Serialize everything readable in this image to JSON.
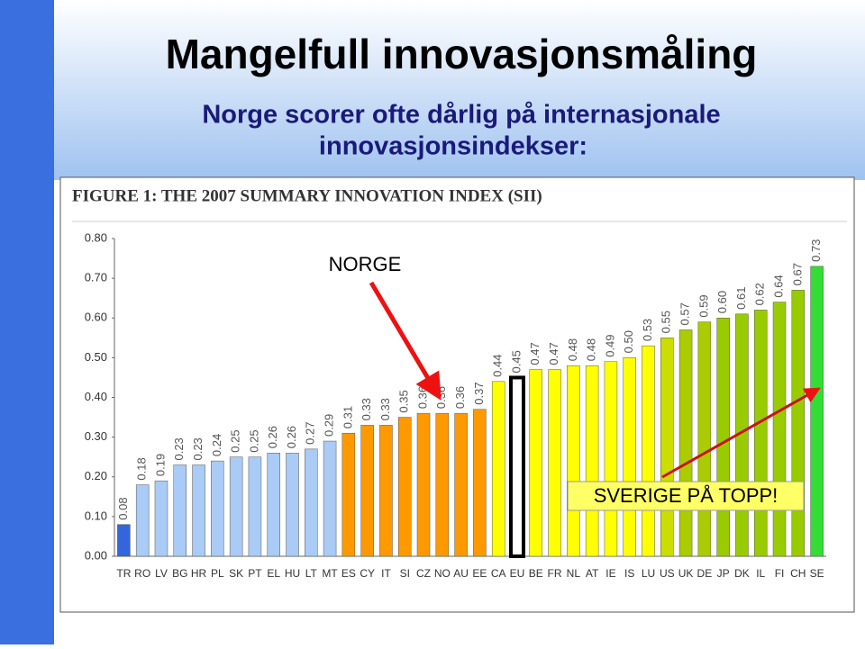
{
  "header": {
    "title": "Mangelfull innovasjonsmåling",
    "subtitle": [
      "Norge scorer ofte dårlig på internasjonale",
      "innovasjonsindekser:"
    ]
  },
  "chart_data": {
    "type": "bar",
    "title": "FIGURE 1: THE 2007 SUMMARY INNOVATION INDEX (SII)",
    "categories": [
      "TR",
      "RO",
      "LV",
      "BG",
      "HR",
      "PL",
      "SK",
      "PT",
      "EL",
      "HU",
      "LT",
      "MT",
      "ES",
      "CY",
      "IT",
      "SI",
      "CZ",
      "NO",
      "AU",
      "EE",
      "CA",
      "EU",
      "BE",
      "FR",
      "NL",
      "AT",
      "IE",
      "IS",
      "LU",
      "US",
      "UK",
      "DE",
      "JP",
      "DK",
      "IL",
      "FI",
      "CH",
      "SE"
    ],
    "values": [
      0.08,
      0.18,
      0.19,
      0.23,
      0.23,
      0.24,
      0.25,
      0.25,
      0.26,
      0.26,
      0.27,
      0.29,
      0.31,
      0.33,
      0.33,
      0.35,
      0.36,
      0.36,
      0.36,
      0.37,
      0.44,
      0.45,
      0.47,
      0.47,
      0.48,
      0.48,
      0.49,
      0.5,
      0.53,
      0.55,
      0.57,
      0.59,
      0.6,
      0.61,
      0.62,
      0.64,
      0.67,
      0.73
    ],
    "value_labels": [
      "0.08",
      "0.18",
      "0.19",
      "0.23",
      "0.23",
      "0.24",
      "0.25",
      "0.25",
      "0.26",
      "0.26",
      "0.27",
      "0.29",
      "0.31",
      "0.33",
      "0.33",
      "0.35",
      "0.36",
      "0.36",
      "0.36",
      "0.37",
      "0.44",
      "0.45",
      "0.47",
      "0.47",
      "0.48",
      "0.48",
      "0.49",
      "0.50",
      "0.53",
      "0.55",
      "0.57",
      "0.59",
      "0.60",
      "0.61",
      "0.62",
      "0.64",
      "0.67",
      "0.73"
    ],
    "colors": [
      "#3366dd",
      "#a9cbf5",
      "#a9cbf5",
      "#a9cbf5",
      "#a9cbf5",
      "#a9cbf5",
      "#a9cbf5",
      "#a9cbf5",
      "#a9cbf5",
      "#a9cbf5",
      "#a9cbf5",
      "#a9cbf5",
      "#ff9900",
      "#ff9900",
      "#ff9900",
      "#ff9900",
      "#ff9900",
      "#ff9900",
      "#ff9900",
      "#ff9900",
      "#ffff00",
      "#ffffff",
      "#ffff00",
      "#ffff00",
      "#ffff00",
      "#ffff00",
      "#ffff00",
      "#ffff00",
      "#ffff00",
      "#ccdd00",
      "#aacc00",
      "#aacc00",
      "#99cc00",
      "#99cc00",
      "#99cc00",
      "#99cc00",
      "#99cc00",
      "#33dd33"
    ],
    "ylim": [
      0,
      0.8
    ],
    "yticks": [
      {
        "value": 0,
        "label": "0.00"
      },
      {
        "value": 0.1,
        "label": "0.10"
      },
      {
        "value": 0.2,
        "label": "0.20"
      },
      {
        "value": 0.3,
        "label": "0.30"
      },
      {
        "value": 0.4,
        "label": "0.40"
      },
      {
        "value": 0.5,
        "label": "0.50"
      },
      {
        "value": 0.6,
        "label": "0.60"
      },
      {
        "value": 0.7,
        "label": "0.70"
      },
      {
        "value": 0.8,
        "label": "0.80"
      }
    ],
    "annotations": [
      "NORGE",
      "SVERIGE PÅ TOPP!"
    ]
  }
}
